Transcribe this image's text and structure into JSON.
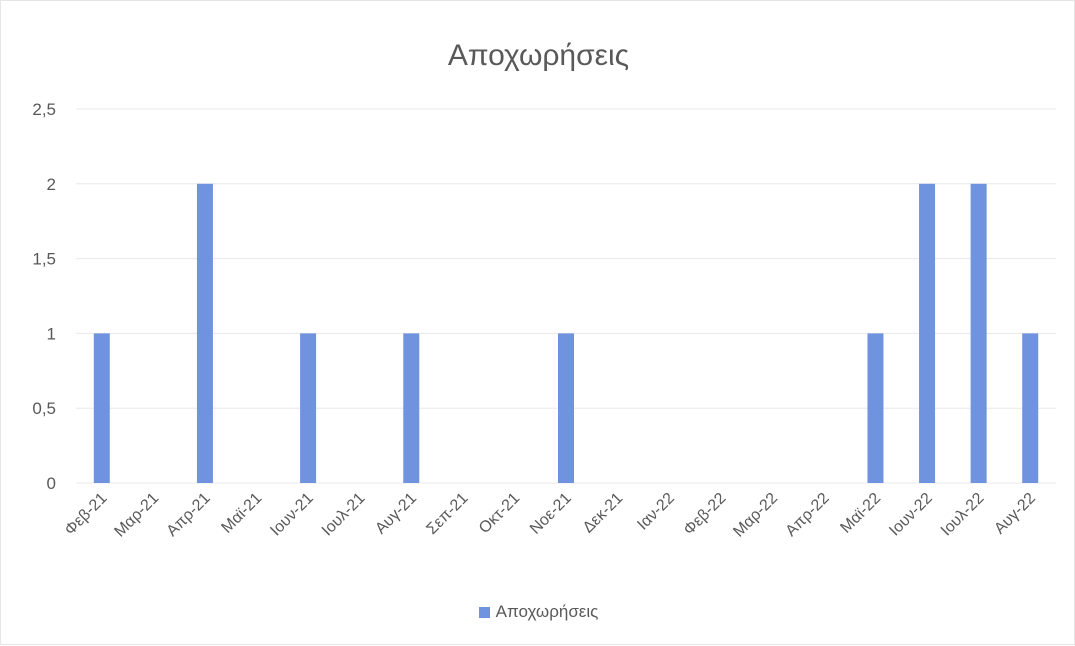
{
  "colors": {
    "bar": "#6f93de",
    "grid": "#e8e8e8",
    "text": "#595959"
  },
  "chart_data": {
    "type": "bar",
    "title": "Αποχωρήσεις",
    "xlabel": "",
    "ylabel": "",
    "categories": [
      "Φεβ-21",
      "Μαρ-21",
      "Απρ-21",
      "Μαϊ-21",
      "Ιουν-21",
      "Ιουλ-21",
      "Αυγ-21",
      "Σεπ-21",
      "Οκτ-21",
      "Νοε-21",
      "Δεκ-21",
      "Ιαν-22",
      "Φεβ-22",
      "Μαρ-22",
      "Απρ-22",
      "Μαϊ-22",
      "Ιουν-22",
      "Ιουλ-22",
      "Αυγ-22"
    ],
    "series": [
      {
        "name": "Αποχωρήσεις",
        "values": [
          1,
          0,
          2,
          0,
          1,
          0,
          1,
          0,
          0,
          1,
          0,
          0,
          0,
          0,
          0,
          1,
          2,
          2,
          1
        ]
      }
    ],
    "ylim": [
      0,
      2.5
    ],
    "yticks": [
      "0",
      "0,5",
      "1",
      "1,5",
      "2",
      "2,5"
    ],
    "grid": true,
    "legend_position": "bottom"
  }
}
